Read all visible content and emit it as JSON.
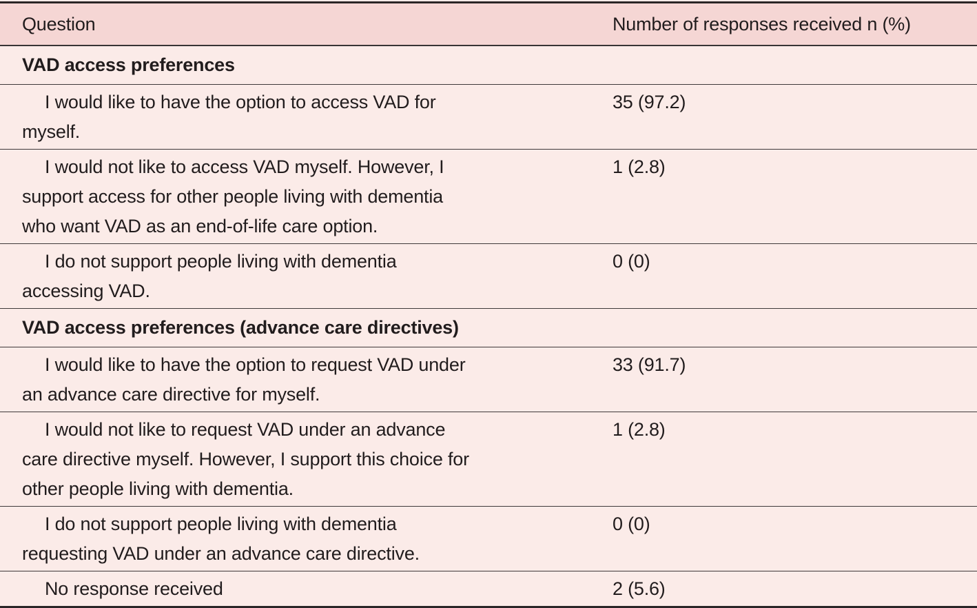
{
  "table": {
    "header": {
      "question_label": "Question",
      "responses_label": "Number of responses received n (%)"
    },
    "rows": [
      {
        "type": "section",
        "question": "VAD access preferences",
        "value": ""
      },
      {
        "type": "item",
        "question": "I would like to have the option to access VAD for\nmyself.",
        "value": "35 (97.2)"
      },
      {
        "type": "item",
        "question": "I would not like to access VAD myself. However, I\nsupport access for other people living with dementia\nwho want VAD as an end-of-life care option.",
        "value": "1 (2.8)"
      },
      {
        "type": "item",
        "question": "I do not support people living with dementia\naccessing VAD.",
        "value": "0 (0)"
      },
      {
        "type": "section",
        "question": "VAD access preferences (advance care directives)",
        "value": ""
      },
      {
        "type": "item",
        "question": "I would like to have the option to request VAD under\nan advance care directive for myself.",
        "value": "33 (91.7)"
      },
      {
        "type": "item",
        "question": "I would not like to request VAD under an advance\ncare directive myself. However, I support this choice for\nother people living with dementia.",
        "value": "1 (2.8)"
      },
      {
        "type": "item",
        "question": "I do not support people living with dementia\nrequesting VAD under an advance care directive.",
        "value": "0 (0)"
      },
      {
        "type": "item",
        "question": "No response received",
        "value": "2 (5.6)"
      }
    ]
  },
  "colors": {
    "header_background": "#f5d6d4",
    "body_background": "#fbebe8",
    "text": "#211c1d",
    "row_border": "#3d3839",
    "outer_border": "#2a2526"
  },
  "chart_data": {
    "type": "table",
    "columns": [
      "Question",
      "Number of responses received n (%)"
    ],
    "sections": [
      {
        "title": "VAD access preferences",
        "rows": [
          {
            "question": "I would like to have the option to access VAD for myself.",
            "n": 35,
            "percent": 97.2
          },
          {
            "question": "I would not like to access VAD myself. However, I support access for other people living with dementia who want VAD as an end-of-life care option.",
            "n": 1,
            "percent": 2.8
          },
          {
            "question": "I do not support people living with dementia accessing VAD.",
            "n": 0,
            "percent": 0
          }
        ]
      },
      {
        "title": "VAD access preferences (advance care directives)",
        "rows": [
          {
            "question": "I would like to have the option to request VAD under an advance care directive for myself.",
            "n": 33,
            "percent": 91.7
          },
          {
            "question": "I would not like to request VAD under an advance care directive myself. However, I support this choice for other people living with dementia.",
            "n": 1,
            "percent": 2.8
          },
          {
            "question": "I do not support people living with dementia requesting VAD under an advance care directive.",
            "n": 0,
            "percent": 0
          },
          {
            "question": "No response received",
            "n": 2,
            "percent": 5.6
          }
        ]
      }
    ]
  }
}
